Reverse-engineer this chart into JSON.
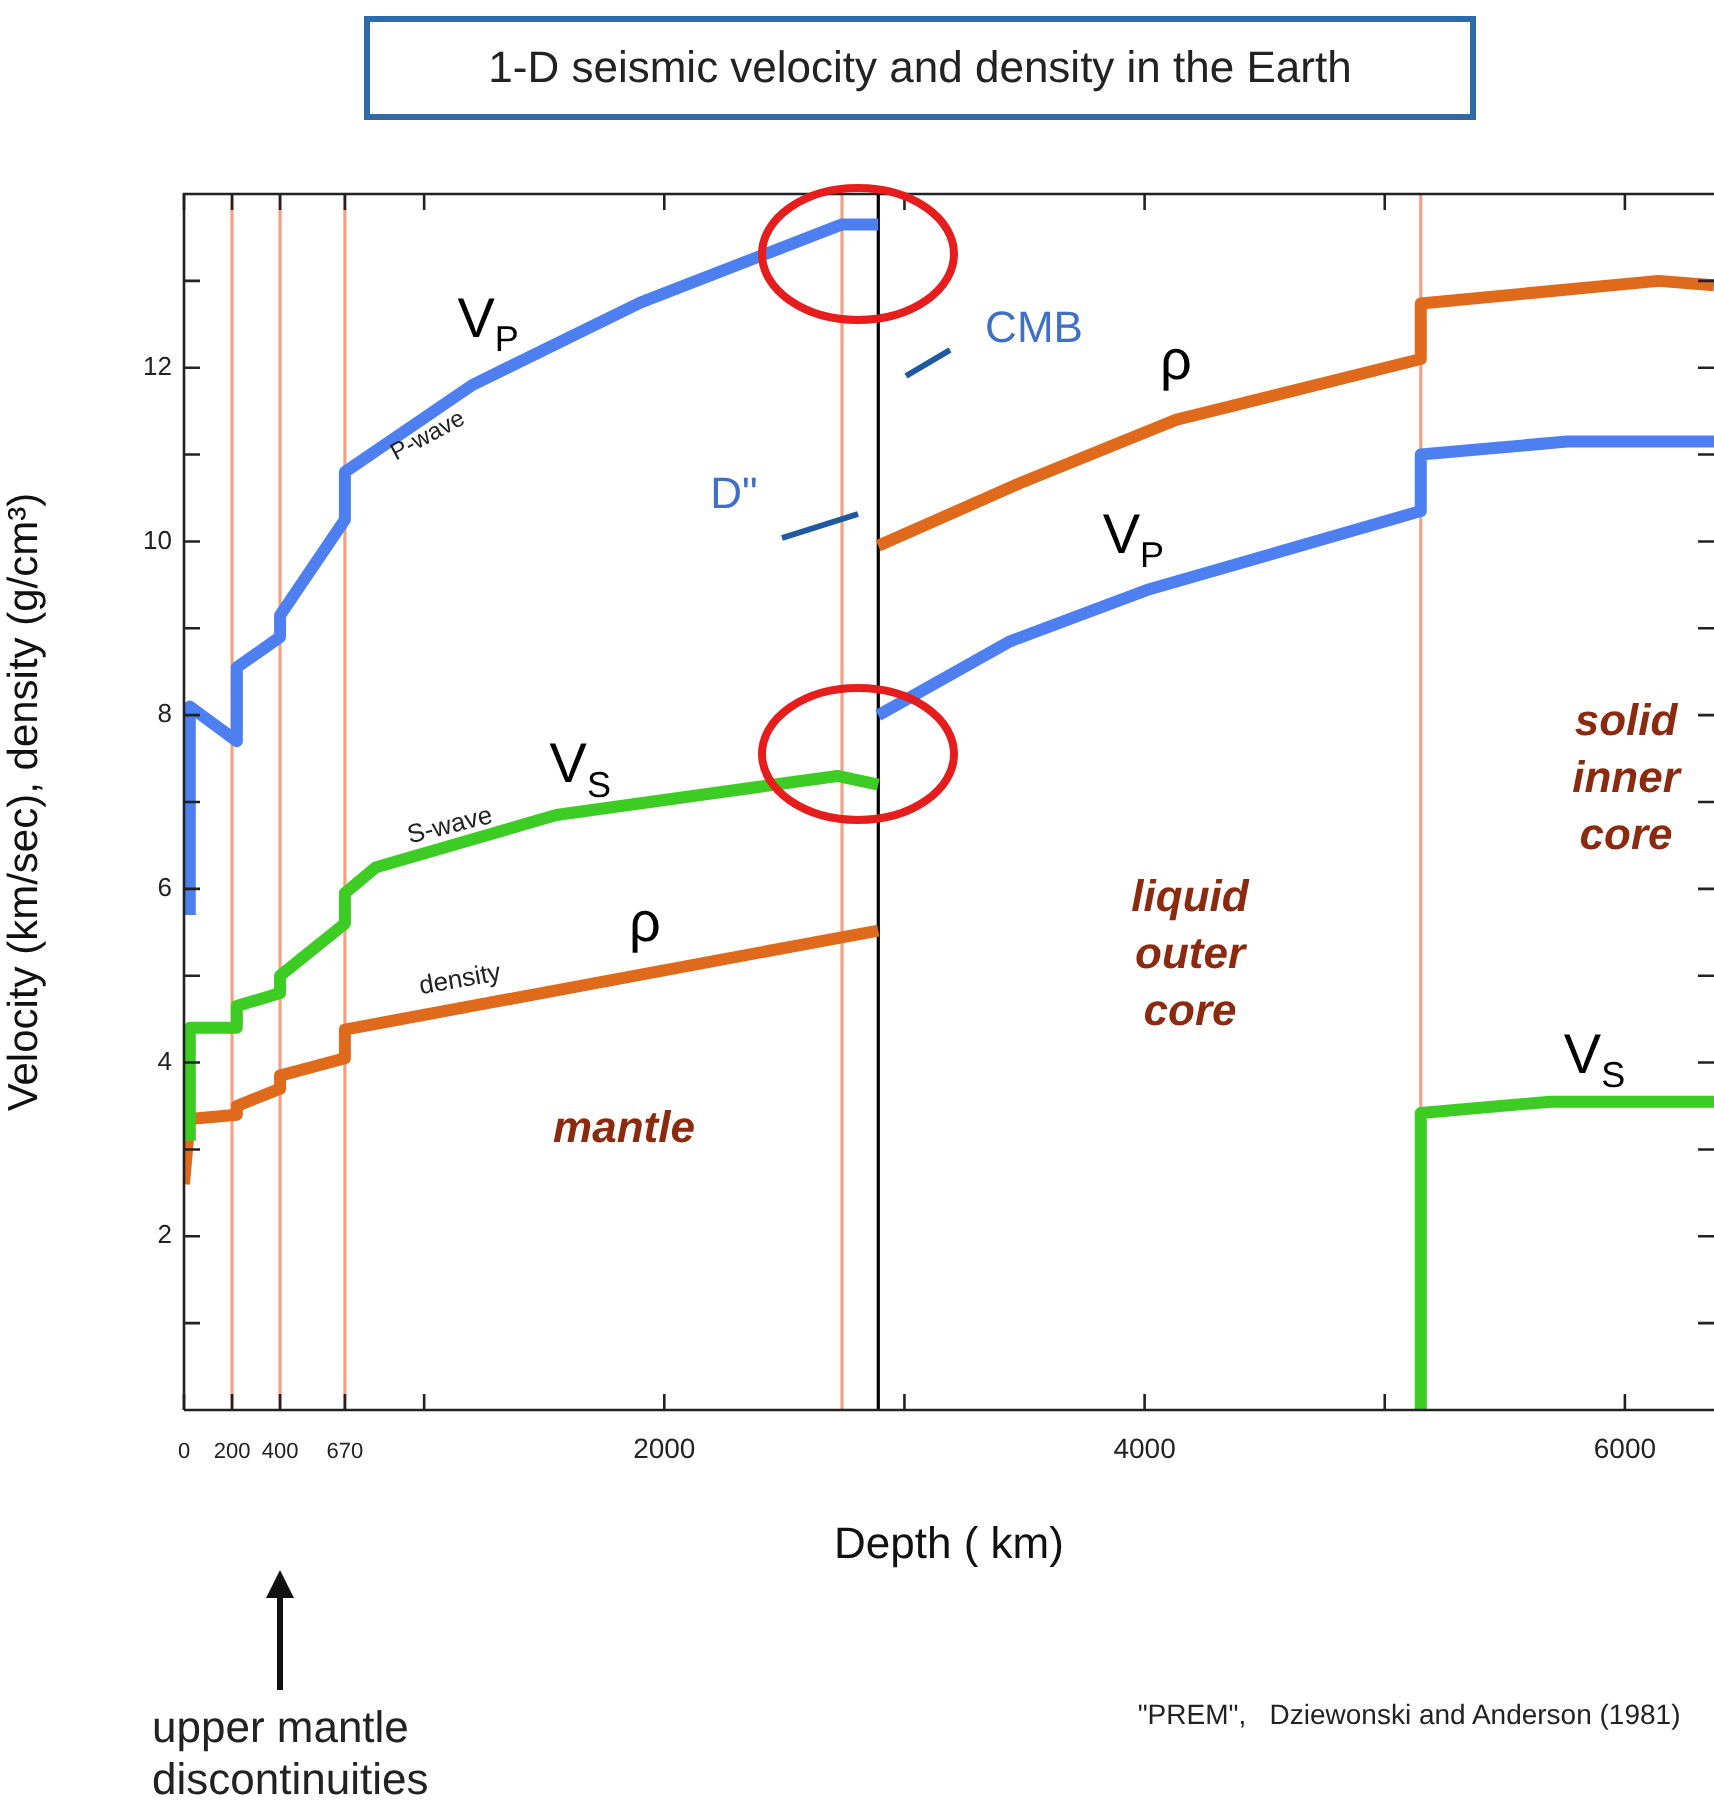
{
  "chart_data": {
    "type": "line",
    "title": "1-D seismic velocity and density in the Earth",
    "xlabel": "Depth ( km)",
    "ylabel": "Velocity (km/sec), density (g/cm³)",
    "xlim": [
      0,
      6371
    ],
    "ylim": [
      0,
      14
    ],
    "xticks": [
      0,
      200,
      400,
      670,
      {
        "value": 1000,
        "label": null
      },
      2000,
      {
        "value": 3000,
        "label": null
      },
      4000,
      {
        "value": 5000,
        "label": null
      },
      6000
    ],
    "yticks": [
      {
        "value": 1,
        "label": null
      },
      2,
      {
        "value": 3,
        "label": null
      },
      4,
      {
        "value": 5,
        "label": null
      },
      6,
      {
        "value": 7,
        "label": null
      },
      8,
      {
        "value": 9,
        "label": null
      },
      10,
      {
        "value": 11,
        "label": null
      },
      12,
      {
        "value": 13,
        "label": null
      }
    ],
    "grid": false,
    "legend": false,
    "marker": "none",
    "line_style": "solid",
    "series": [
      {
        "name": "V$_{P}$",
        "color": "#4d7ff0",
        "x": [
          24,
          24,
          220,
          220,
          400,
          400,
          670,
          670,
          1200,
          1900,
          2740,
          2891
        ],
        "values": [
          5.7,
          8.1,
          7.7,
          8.55,
          8.9,
          9.15,
          10.25,
          10.8,
          11.8,
          12.75,
          13.65,
          13.65
        ]
      },
      {
        "name": "V$_{P}$",
        "color": "#4d7ff0",
        "x": [
          2891,
          3440,
          4020,
          5150,
          5150,
          5760,
          6371
        ],
        "values": [
          8.0,
          8.85,
          9.45,
          10.35,
          11.0,
          11.15,
          11.15
        ]
      },
      {
        "name": "V$_{S}$",
        "color": "#3ccc24",
        "x": [
          24,
          24,
          220,
          220,
          400,
          400,
          670,
          670,
          800,
          1550,
          2720,
          2891
        ],
        "values": [
          3.1,
          4.4,
          4.4,
          4.65,
          4.8,
          5.0,
          5.6,
          5.95,
          6.25,
          6.85,
          7.3,
          7.2
        ]
      },
      {
        "name": "V$_{S}$",
        "color": "#3ccc24",
        "x": [
          5150,
          5150,
          5690,
          6371
        ],
        "values": [
          0,
          3.42,
          3.55,
          3.55
        ]
      },
      {
        "name": "ρ",
        "color": "#e06a1c",
        "x": [
          0,
          24,
          220,
          220,
          400,
          400,
          670,
          670,
          2891
        ],
        "values": [
          2.6,
          3.35,
          3.4,
          3.5,
          3.7,
          3.85,
          4.05,
          4.38,
          5.52
        ]
      },
      {
        "name": "ρ",
        "color": "#e06a1c",
        "x": [
          2891,
          3480,
          4130,
          5150,
          5150,
          6140,
          6371
        ],
        "values": [
          9.95,
          10.67,
          11.4,
          12.1,
          12.74,
          13.0,
          12.95
        ]
      }
    ],
    "ref_lines": [
      {
        "axis": "x",
        "value": 200,
        "color": "#f2a185"
      },
      {
        "axis": "x",
        "value": 400,
        "color": "#f2a185"
      },
      {
        "axis": "x",
        "value": 670,
        "color": "#f2a185"
      },
      {
        "axis": "x",
        "value": 2740,
        "color": "#f2a185"
      },
      {
        "axis": "x",
        "value": 2891,
        "color": "#000000"
      },
      {
        "axis": "x",
        "value": 5150,
        "color": "#f2a185"
      }
    ],
    "annotations": [
      "P-wave",
      "S-wave",
      "density",
      "mantle",
      "CMB",
      "D\"",
      "liquid outer core",
      "solid inner core",
      "upper mantle discontinuities",
      "\"PREM\",   Dziewonski and Anderson (1981)"
    ]
  }
}
